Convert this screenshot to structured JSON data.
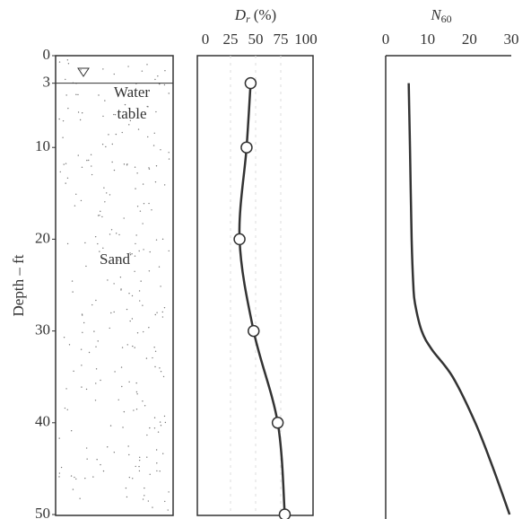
{
  "chart_data": [
    {
      "type": "profile",
      "ylabel": "Depth – ft",
      "ylim": [
        0,
        50
      ],
      "yticks": [
        0,
        3,
        10,
        20,
        30,
        40,
        50
      ],
      "labels": [
        "Water",
        "table",
        "Sand"
      ]
    },
    {
      "type": "line",
      "title": {
        "symbol": "D",
        "subscript": "r",
        "unit": "(%)"
      },
      "depth": [
        3,
        10,
        20,
        30,
        40,
        50
      ],
      "values": [
        45,
        41,
        34,
        48,
        72,
        79
      ],
      "xlim": [
        0,
        100
      ],
      "xticks": [
        0,
        25,
        50,
        75,
        100
      ],
      "markers": true,
      "grid": true,
      "color": "#333333"
    },
    {
      "type": "line",
      "title": {
        "symbol": "N",
        "subscript": "60"
      },
      "depth": [
        3,
        10,
        20,
        25,
        27,
        30,
        32,
        35,
        40,
        45,
        50
      ],
      "values": [
        5.5,
        5.8,
        6.2,
        6.6,
        7,
        8.6,
        11,
        16,
        21.4,
        25.7,
        29.6
      ],
      "xlim": [
        0,
        30
      ],
      "xticks": [
        0,
        10,
        20,
        30
      ],
      "markers": false,
      "grid": false,
      "color": "#333333"
    }
  ]
}
